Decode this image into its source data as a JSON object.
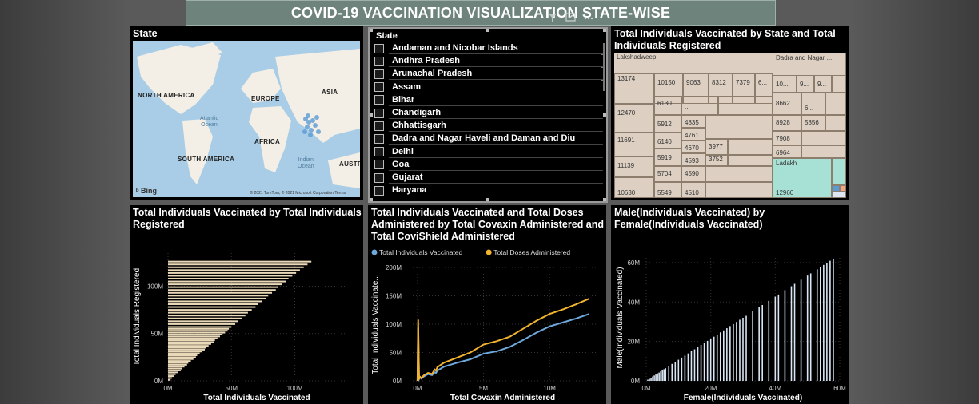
{
  "title": "COVID-19 VACCINATION VISUALIZATION STATE-WISE",
  "colors": {
    "panel_bg": "#000000",
    "bar_fill": "#ead9b8",
    "line_individuals": "#6fa8dc",
    "line_doses": "#f2b32f",
    "treemap_fill": "#ddd0c2",
    "treemap_highlight": "#a7e0d4",
    "scatter_bar": "#d9e6f5"
  },
  "map": {
    "title": "State",
    "labels": {
      "north_america": "NORTH AMERICA",
      "europe": "EUROPE",
      "asia": "ASIA",
      "africa": "AFRICA",
      "south_america": "SOUTH AMERICA",
      "austr": "AUSTR",
      "atlantic": "Atlantic",
      "atlantic2": "Ocean",
      "indian": "Indian",
      "indian2": "Ocean"
    },
    "bing": "Bing",
    "copyright": "© 2021 TomTom, © 2021 Microsoft Corporation Terms"
  },
  "slicer": {
    "title": "State",
    "items": [
      "Andaman and Nicobar Islands",
      "Andhra Pradesh",
      "Arunachal Pradesh",
      "Assam",
      "Bihar",
      "Chandigarh",
      "Chhattisgarh",
      "Dadra and Nagar Haveli and Daman and Diu",
      "Delhi",
      "Goa",
      "Gujarat",
      "Haryana"
    ]
  },
  "treemap": {
    "title_line1": "Total Individuals Vaccinated by State and Total",
    "title_line2": "Individuals Registered",
    "labels": {
      "lakshadweep": "Lakshadweep",
      "dadra": "Dadra and Nagar ...",
      "ladakh": "Ladakh"
    },
    "values": {
      "v13174": "13174",
      "v10150": "10150",
      "v9063": "9063",
      "v8312": "8312",
      "v7379": "7379",
      "v6dots": "6...",
      "v12470": "12470",
      "v6130": "6130",
      "vdots": "...",
      "v11691": "11691",
      "v5912": "5912",
      "v4835": "4835",
      "v6140": "6140",
      "v4761": "4761",
      "v4670": "4670",
      "v3977": "3977",
      "v11139": "11139",
      "v5919": "5919",
      "v4593": "4593",
      "v3752": "3752",
      "v5704": "5704",
      "v4590": "4590",
      "v10630": "10630",
      "v5549": "5549",
      "v4510": "4510",
      "v10a": "10...",
      "v9a": "9...",
      "v9b": "9...",
      "v8662": "8662",
      "v6a": "6...",
      "v8928": "8928",
      "v5856": "5856",
      "v7908": "7908",
      "v6964": "6964",
      "v12960": "12960"
    }
  },
  "chart_bar": {
    "title_line1": "Total Individuals Vaccinated by Total Individuals",
    "title_line2": "Registered"
  },
  "chart_line": {
    "title_line1": "Total Individuals Vaccinated and Total Doses",
    "title_line2": "Administered by Total Covaxin Administered and",
    "title_line3": "Total CoviShield Administered"
  },
  "chart_scatter": {
    "title_line1": "Male(Individuals Vaccinated) by",
    "title_line2": "Female(Individuals Vaccinated)"
  },
  "chart_data": [
    {
      "type": "bar",
      "orientation": "horizontal",
      "xlabel": "Total Individuals Vaccinated",
      "ylabel": "Total Individuals Registered",
      "xticks": [
        "0M",
        "50M",
        "100M"
      ],
      "yticks": [
        "0M",
        "50M",
        "100M"
      ],
      "xlim": [
        0,
        140
      ],
      "ylim": [
        0,
        135
      ],
      "unit": "M",
      "bars": [
        {
          "y": 1,
          "x": 2
        },
        {
          "y": 3,
          "x": 3
        },
        {
          "y": 5,
          "x": 5
        },
        {
          "y": 7,
          "x": 6
        },
        {
          "y": 9,
          "x": 8
        },
        {
          "y": 11,
          "x": 10
        },
        {
          "y": 13,
          "x": 11
        },
        {
          "y": 15,
          "x": 13
        },
        {
          "y": 17,
          "x": 15
        },
        {
          "y": 19,
          "x": 16
        },
        {
          "y": 21,
          "x": 18
        },
        {
          "y": 23,
          "x": 20
        },
        {
          "y": 25,
          "x": 22
        },
        {
          "y": 27,
          "x": 23
        },
        {
          "y": 29,
          "x": 25
        },
        {
          "y": 31,
          "x": 27
        },
        {
          "y": 33,
          "x": 29
        },
        {
          "y": 35,
          "x": 30
        },
        {
          "y": 37,
          "x": 32
        },
        {
          "y": 39,
          "x": 34
        },
        {
          "y": 41,
          "x": 36
        },
        {
          "y": 43,
          "x": 37
        },
        {
          "y": 45,
          "x": 39
        },
        {
          "y": 47,
          "x": 41
        },
        {
          "y": 49,
          "x": 43
        },
        {
          "y": 51,
          "x": 45
        },
        {
          "y": 53,
          "x": 47
        },
        {
          "y": 55,
          "x": 48
        },
        {
          "y": 57,
          "x": 50
        },
        {
          "y": 60,
          "x": 53
        },
        {
          "y": 63,
          "x": 55
        },
        {
          "y": 66,
          "x": 58
        },
        {
          "y": 69,
          "x": 61
        },
        {
          "y": 72,
          "x": 63
        },
        {
          "y": 75,
          "x": 66
        },
        {
          "y": 78,
          "x": 69
        },
        {
          "y": 81,
          "x": 71
        },
        {
          "y": 84,
          "x": 74
        },
        {
          "y": 87,
          "x": 77
        },
        {
          "y": 90,
          "x": 79
        },
        {
          "y": 93,
          "x": 82
        },
        {
          "y": 96,
          "x": 85
        },
        {
          "y": 99,
          "x": 87
        },
        {
          "y": 102,
          "x": 90
        },
        {
          "y": 105,
          "x": 93
        },
        {
          "y": 108,
          "x": 95
        },
        {
          "y": 111,
          "x": 98
        },
        {
          "y": 114,
          "x": 101
        },
        {
          "y": 117,
          "x": 104
        },
        {
          "y": 120,
          "x": 107
        },
        {
          "y": 123,
          "x": 110
        },
        {
          "y": 126,
          "x": 113
        }
      ]
    },
    {
      "type": "line",
      "xlabel": "Total Covaxin Administered",
      "ylabel": "Total Individuals Vaccinate...",
      "xticks": [
        "0M",
        "5M",
        "10M"
      ],
      "yticks": [
        "0M",
        "50M",
        "100M",
        "150M",
        "200M"
      ],
      "xlim": [
        -0.6,
        13.5
      ],
      "ylim": [
        0,
        200
      ],
      "unit": "M",
      "legend_position": "top-left",
      "series": [
        {
          "name": "Total Individuals Vaccinated",
          "color": "#6fa8dc",
          "x": [
            0,
            0.05,
            0.12,
            0.2,
            0.3,
            0.5,
            0.8,
            1.1,
            1.3,
            1.4,
            1.5,
            2,
            3,
            4,
            5,
            6,
            7,
            8,
            9,
            10,
            11,
            12,
            13
          ],
          "y": [
            0,
            95,
            3,
            6,
            4,
            8,
            12,
            10,
            15,
            14,
            18,
            25,
            32,
            38,
            48,
            52,
            60,
            72,
            85,
            96,
            103,
            110,
            118
          ]
        },
        {
          "name": "Total Doses Administered",
          "color": "#f2b32f",
          "x": [
            0,
            0.05,
            0.12,
            0.2,
            0.3,
            0.5,
            0.8,
            1.1,
            1.3,
            1.4,
            1.5,
            2,
            3,
            4,
            5,
            6,
            7,
            8,
            9,
            10,
            11,
            12,
            13
          ],
          "y": [
            0,
            108,
            4,
            7,
            5,
            10,
            14,
            12,
            20,
            18,
            24,
            32,
            41,
            50,
            64,
            70,
            78,
            92,
            106,
            118,
            126,
            135,
            145
          ]
        }
      ]
    },
    {
      "type": "bar",
      "orientation": "vertical",
      "xlabel": "Female(Individuals Vaccinated)",
      "ylabel": "Male(Individuals Vaccinated)",
      "xticks": [
        "0M",
        "20M",
        "40M",
        "60M"
      ],
      "yticks": [
        "0M",
        "20M",
        "40M",
        "60M"
      ],
      "xlim": [
        0,
        60
      ],
      "ylim": [
        0,
        64
      ],
      "unit": "M",
      "bars": [
        {
          "x": 0.5,
          "y": 0.6
        },
        {
          "x": 1,
          "y": 1
        },
        {
          "x": 1.5,
          "y": 1.6
        },
        {
          "x": 2,
          "y": 2.2
        },
        {
          "x": 2.5,
          "y": 2.7
        },
        {
          "x": 3,
          "y": 3.2
        },
        {
          "x": 3.5,
          "y": 3.8
        },
        {
          "x": 4,
          "y": 4.2
        },
        {
          "x": 4.5,
          "y": 4.8
        },
        {
          "x": 5,
          "y": 5.3
        },
        {
          "x": 5.5,
          "y": 5.9
        },
        {
          "x": 6,
          "y": 6.4
        },
        {
          "x": 7,
          "y": 7.5
        },
        {
          "x": 8,
          "y": 8.6
        },
        {
          "x": 9,
          "y": 9.6
        },
        {
          "x": 10,
          "y": 10.7
        },
        {
          "x": 11,
          "y": 11.8
        },
        {
          "x": 12,
          "y": 12.8
        },
        {
          "x": 13,
          "y": 13.9
        },
        {
          "x": 14,
          "y": 15
        },
        {
          "x": 15,
          "y": 16
        },
        {
          "x": 16,
          "y": 17.1
        },
        {
          "x": 17,
          "y": 18.2
        },
        {
          "x": 18,
          "y": 19.2
        },
        {
          "x": 19,
          "y": 20.3
        },
        {
          "x": 20,
          "y": 21.4
        },
        {
          "x": 21,
          "y": 22.4
        },
        {
          "x": 22,
          "y": 23.5
        },
        {
          "x": 23,
          "y": 24.6
        },
        {
          "x": 24,
          "y": 25.6
        },
        {
          "x": 25,
          "y": 26.7
        },
        {
          "x": 26,
          "y": 27.8
        },
        {
          "x": 27,
          "y": 28.8
        },
        {
          "x": 28,
          "y": 29.9
        },
        {
          "x": 29,
          "y": 31
        },
        {
          "x": 30,
          "y": 32
        },
        {
          "x": 31,
          "y": 33
        },
        {
          "x": 33,
          "y": 35.3
        },
        {
          "x": 35,
          "y": 37.4
        },
        {
          "x": 36,
          "y": 38.5
        },
        {
          "x": 38,
          "y": 40.6
        },
        {
          "x": 40,
          "y": 42.7
        },
        {
          "x": 41,
          "y": 43.8
        },
        {
          "x": 43,
          "y": 46
        },
        {
          "x": 45,
          "y": 48
        },
        {
          "x": 46,
          "y": 49.2
        },
        {
          "x": 48,
          "y": 51.3
        },
        {
          "x": 50,
          "y": 53.4
        },
        {
          "x": 51,
          "y": 54.5
        },
        {
          "x": 53,
          "y": 56.6
        },
        {
          "x": 54,
          "y": 57.7
        },
        {
          "x": 55,
          "y": 58.8
        },
        {
          "x": 56,
          "y": 59.8
        },
        {
          "x": 57,
          "y": 60.9
        },
        {
          "x": 58,
          "y": 62
        }
      ]
    }
  ]
}
